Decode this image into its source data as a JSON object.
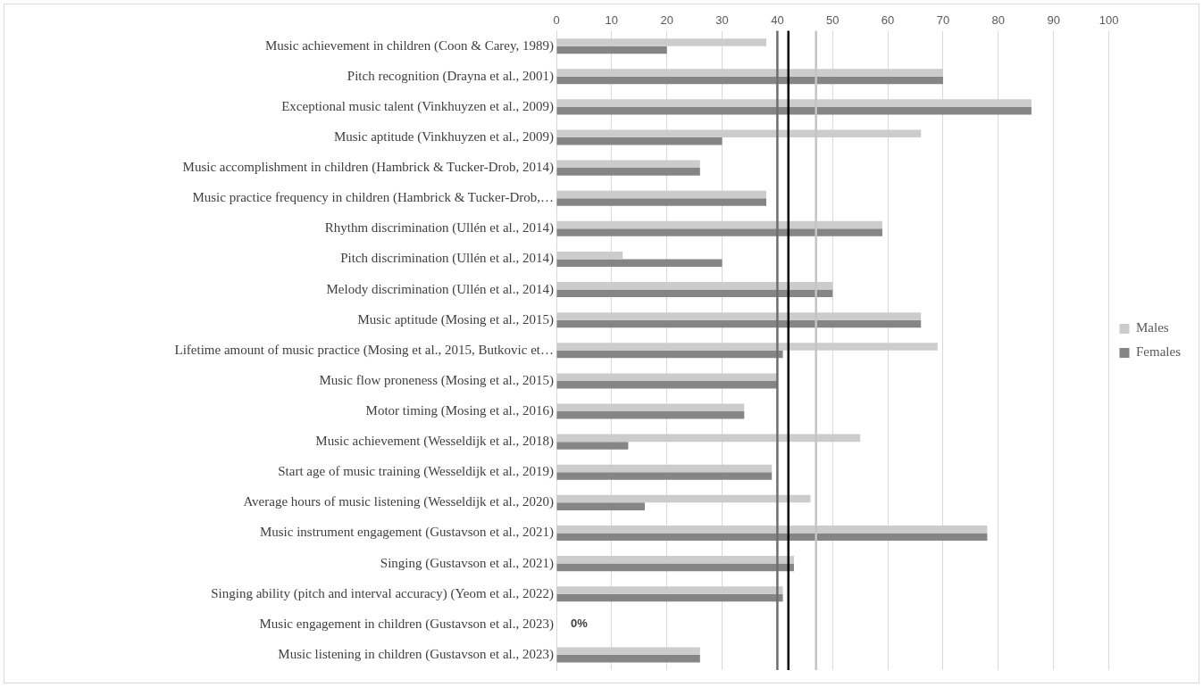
{
  "chart_data": {
    "type": "bar",
    "orientation": "horizontal",
    "categories": [
      "Music achievement in children (Coon & Carey, 1989)",
      "Pitch recognition (Drayna et al., 2001)",
      "Exceptional music talent (Vinkhuyzen et al., 2009)",
      "Music aptitude (Vinkhuyzen et al., 2009)",
      "Music accomplishment in children (Hambrick & Tucker-Drob, 2014)",
      "Music practice frequency in children (Hambrick & Tucker-Drob,…",
      "Rhythm discrimination (Ullén et al., 2014)",
      "Pitch discrimination (Ullén et al., 2014)",
      "Melody discrimination (Ullén et al., 2014)",
      "Music aptitude (Mosing et al., 2015)",
      "Lifetime amount of music practice (Mosing et al., 2015, Butkovic et…",
      "Music flow proneness (Mosing et al., 2015)",
      "Motor timing (Mosing et al., 2016)",
      "Music achievement (Wesseldijk et al., 2018)",
      "Start age of music training (Wesseldijk et al., 2019)",
      "Average hours of music listening (Wesseldijk et al., 2020)",
      "Music instrument engagement (Gustavson et al., 2021)",
      "Singing (Gustavson et al., 2021)",
      "Singing ability (pitch and interval accuracy) (Yeom et al., 2022)",
      "Music engagement in children (Gustavson et al., 2023)",
      "Music listening in children (Gustavson et al., 2023)"
    ],
    "series": [
      {
        "name": "Males",
        "color": "#cccccc",
        "values": [
          38,
          70,
          86,
          66,
          26,
          38,
          59,
          12,
          50,
          66,
          69,
          40,
          34,
          55,
          39,
          46,
          78,
          43,
          41,
          0,
          26
        ]
      },
      {
        "name": "Females",
        "color": "#858585",
        "values": [
          20,
          70,
          86,
          30,
          26,
          38,
          59,
          30,
          50,
          66,
          41,
          40,
          34,
          13,
          39,
          16,
          78,
          43,
          41,
          0,
          26
        ],
        "value_labels": [
          null,
          null,
          null,
          null,
          null,
          null,
          null,
          null,
          null,
          null,
          null,
          null,
          null,
          null,
          null,
          null,
          null,
          null,
          null,
          "0%",
          null
        ]
      }
    ],
    "xlim": [
      0,
      100
    ],
    "xticks": [
      0,
      10,
      20,
      30,
      40,
      50,
      60,
      70,
      80,
      90,
      100
    ],
    "grid": "x",
    "legend": "right",
    "ref_lines": [
      {
        "axis": "x",
        "value": 40,
        "color": "#6e6e6e"
      },
      {
        "axis": "x",
        "value": 42,
        "color": "#000000"
      },
      {
        "axis": "x",
        "value": 47,
        "color": "#c4c4c4"
      }
    ]
  }
}
